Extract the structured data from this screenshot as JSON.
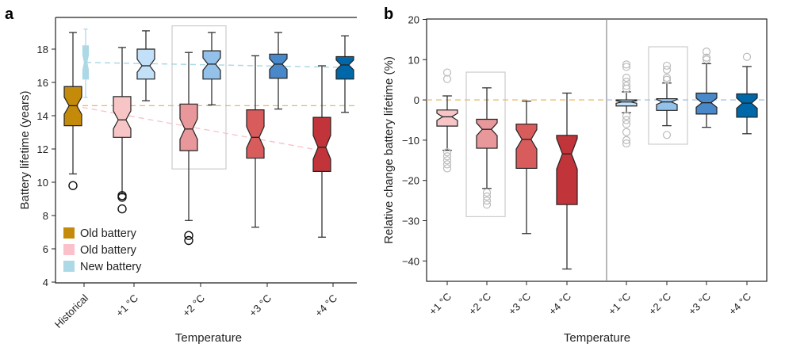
{
  "chart_data": [
    {
      "panel": "a",
      "type": "boxplot",
      "xlabel": "Temperature",
      "ylabel": "Battery lifetime (years)",
      "ylim": [
        4,
        19.9
      ],
      "yticks": [
        4,
        6,
        8,
        10,
        12,
        14,
        16,
        18
      ],
      "categories": [
        "Historical",
        "+1 °C",
        "+2 °C",
        "+3 °C",
        "+4 °C"
      ],
      "legend": [
        {
          "label": "Old battery",
          "color": "#c48a0a"
        },
        {
          "label": "Old battery",
          "color": "#fbc1cb"
        },
        {
          "label": "New battery",
          "color": "#add8e6"
        }
      ],
      "legend_position": "bottom-left",
      "highlight_category": "+2 °C",
      "series": [
        {
          "name": "Old battery",
          "boxes": [
            {
              "category": "Historical",
              "color": "#c48a0a",
              "whislo": 10.5,
              "q1": 13.4,
              "med": 14.6,
              "q3": 15.75,
              "whishi": 19.0,
              "fliers": [
                9.8
              ]
            },
            {
              "category": "+1 °C",
              "color": "#f7c5c5",
              "whislo": 9.3,
              "q1": 12.7,
              "med": 13.75,
              "q3": 15.15,
              "whishi": 18.1,
              "fliers": [
                9.2,
                9.1,
                8.4
              ]
            },
            {
              "category": "+2 °C",
              "color": "#e8979a",
              "whislo": 7.7,
              "q1": 11.9,
              "med": 13.2,
              "q3": 14.7,
              "whishi": 17.8,
              "fliers": [
                6.8,
                6.5
              ]
            },
            {
              "category": "+3 °C",
              "color": "#d95c5c",
              "whislo": 7.3,
              "q1": 11.45,
              "med": 12.7,
              "q3": 14.35,
              "whishi": 17.6,
              "fliers": []
            },
            {
              "category": "+4 °C",
              "color": "#c1343a",
              "whislo": 6.7,
              "q1": 10.65,
              "med": 12.1,
              "q3": 13.9,
              "whishi": 17.0,
              "fliers": []
            }
          ]
        },
        {
          "name": "New battery",
          "boxes": [
            {
              "category": "Historical",
              "color": "#add8e6",
              "whislo": 15.1,
              "q1": 16.2,
              "med": 17.2,
              "q3": 18.2,
              "whishi": 19.2,
              "fliers": []
            },
            {
              "category": "+1 °C",
              "color": "#c2e0f7",
              "whislo": 14.9,
              "q1": 16.2,
              "med": 17.0,
              "q3": 18.0,
              "whishi": 19.1,
              "fliers": []
            },
            {
              "category": "+2 °C",
              "color": "#93c1ea",
              "whislo": 14.65,
              "q1": 16.2,
              "med": 17.1,
              "q3": 17.9,
              "whishi": 19.0,
              "fliers": []
            },
            {
              "category": "+3 °C",
              "color": "#4a89c9",
              "whislo": 14.4,
              "q1": 16.25,
              "med": 17.1,
              "q3": 17.7,
              "whishi": 19.0,
              "fliers": []
            },
            {
              "category": "+4 °C",
              "color": "#0068a8",
              "whislo": 14.2,
              "q1": 16.2,
              "med": 17.05,
              "q3": 17.55,
              "whishi": 18.8,
              "fliers": []
            }
          ]
        }
      ],
      "reference_lines": [
        {
          "name": "historical-old-median",
          "color": "#e8b860",
          "from": 14.6,
          "to": 14.6
        },
        {
          "name": "new-median-trend",
          "color": "#add8e6",
          "from": 17.2,
          "to": 16.9
        },
        {
          "name": "old-median-trend",
          "color": "#f7c0c8",
          "from": 14.6,
          "to": 11.9
        }
      ]
    },
    {
      "panel": "b",
      "type": "boxplot",
      "xlabel": "Temperature",
      "ylabel": "Relative change battery lifetime (%)",
      "ylim": [
        -45,
        20
      ],
      "yticks": [
        -40,
        -30,
        -20,
        -10,
        0,
        10,
        20
      ],
      "categories": [
        "+1 °C",
        "+2 °C",
        "+3 °C",
        "+4 °C",
        "+1 °C",
        "+2 °C",
        "+3 °C",
        "+4 °C"
      ],
      "highlight_category": "+2 °C",
      "groups": [
        {
          "name": "Old battery",
          "zero_line_color": "#e8c070",
          "boxes": [
            {
              "category": "+1 °C",
              "color": "#f7c5c5",
              "whislo": -12.5,
              "q1": -6.5,
              "med": -4.2,
              "q3": -2.5,
              "whishi": 1.0,
              "fliers": [
                6.8,
                5.2,
                -13,
                -14,
                -15,
                -16,
                -17
              ]
            },
            {
              "category": "+2 °C",
              "color": "#e8979a",
              "whislo": -22,
              "q1": -12,
              "med": -7.3,
              "q3": -4.8,
              "whishi": 3.0,
              "fliers": [
                -23,
                -24,
                -25,
                -26
              ]
            },
            {
              "category": "+3 °C",
              "color": "#d95c5c",
              "whislo": -33.2,
              "q1": -17,
              "med": -9.8,
              "q3": -6,
              "whishi": -0.3,
              "fliers": []
            },
            {
              "category": "+4 °C",
              "color": "#c1343a",
              "whislo": -42,
              "q1": -26,
              "med": -13.4,
              "q3": -8.8,
              "whishi": 1.7,
              "fliers": []
            }
          ]
        },
        {
          "name": "New battery",
          "zero_line_color": "#a8c4ee",
          "boxes": [
            {
              "category": "+1 °C",
              "color": "#c2e0f7",
              "whislo": -3.2,
              "q1": -1.5,
              "med": -0.5,
              "q3": 0,
              "whishi": 2.0,
              "fliers": [
                8.8,
                8.2,
                5.5,
                4.5,
                3.5,
                2.8,
                -4,
                -5,
                -6,
                -8,
                -10,
                -10.8
              ]
            },
            {
              "category": "+2 °C",
              "color": "#93c1ea",
              "whislo": -6.4,
              "q1": -2.6,
              "med": -0.5,
              "q3": 0.3,
              "whishi": 4.2,
              "fliers": [
                8.5,
                7.5,
                5.5,
                5.0,
                -8.7
              ]
            },
            {
              "category": "+3 °C",
              "color": "#4a89c9",
              "whislo": -6.8,
              "q1": -3.5,
              "med": -0.7,
              "q3": 1.7,
              "whishi": 9.0,
              "fliers": [
                12,
                10.5,
                10
              ]
            },
            {
              "category": "+4 °C",
              "color": "#0068a8",
              "whislo": -8.4,
              "q1": -4.3,
              "med": -0.8,
              "q3": 1.5,
              "whishi": 8.3,
              "fliers": [
                10.7
              ]
            }
          ]
        }
      ]
    }
  ]
}
